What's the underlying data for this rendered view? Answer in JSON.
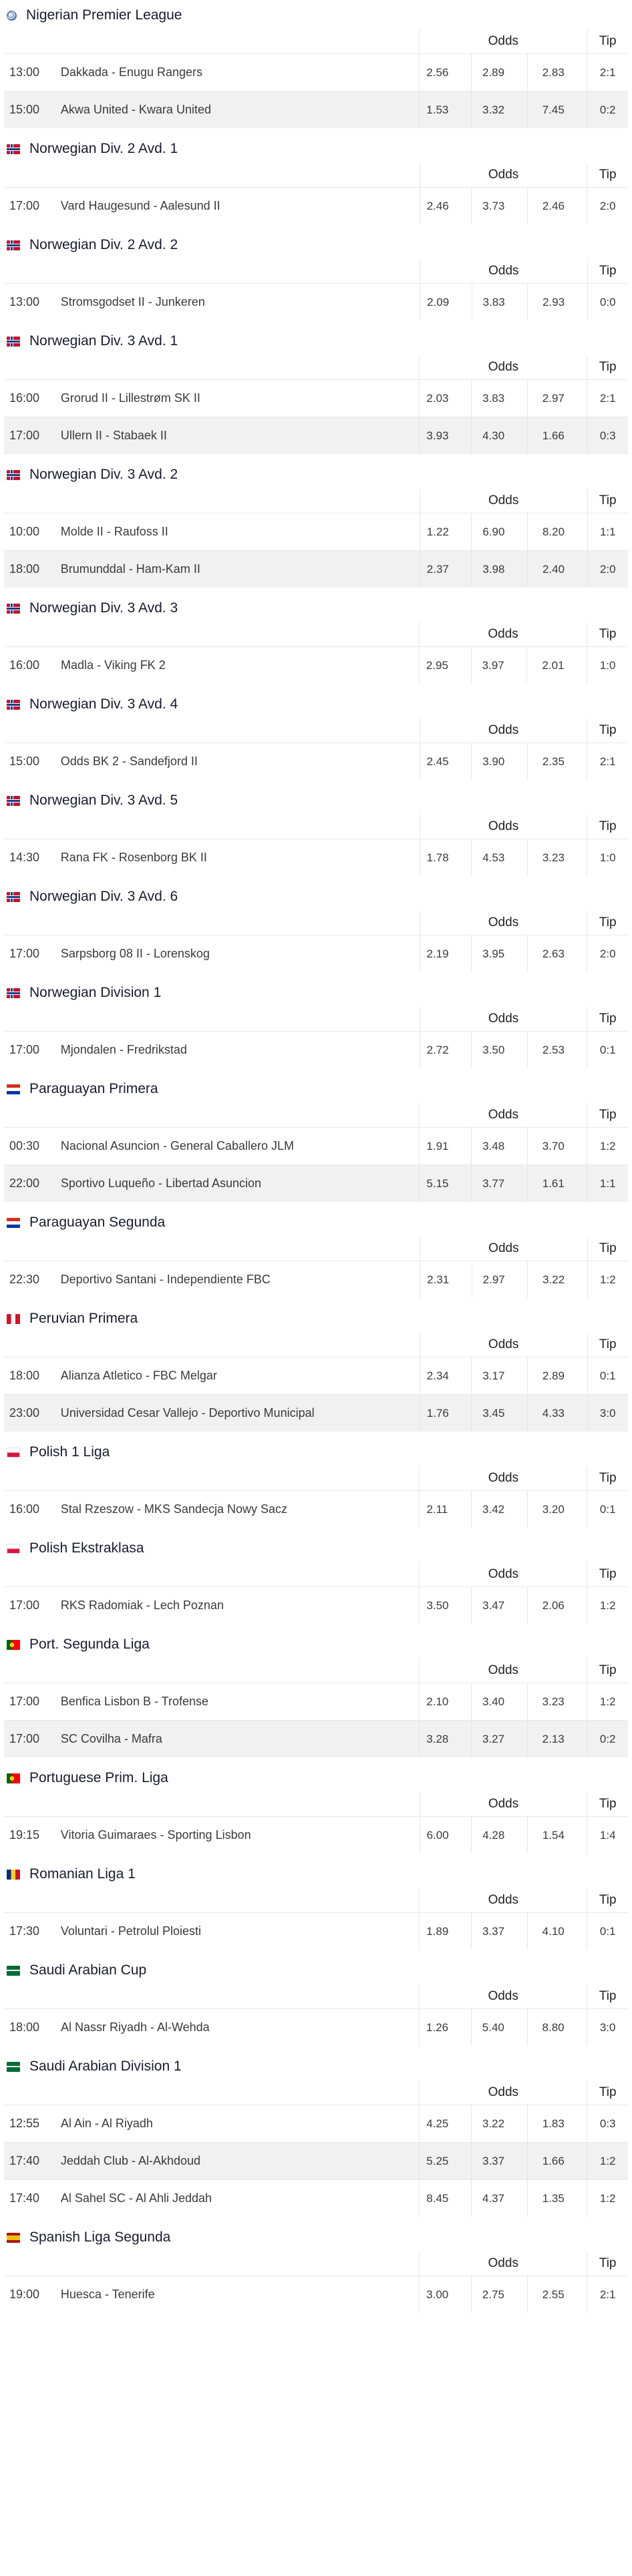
{
  "labels": {
    "odds": "Odds",
    "tip": "Tip"
  },
  "leagues": [
    {
      "name": "Nigerian Premier League",
      "flag": "globe-icon",
      "matches": [
        {
          "time": "13:00",
          "match": "Dakkada - Enugu Rangers",
          "o1": "2.56",
          "ox": "2.89",
          "o2": "2.83",
          "tip": "2:1"
        },
        {
          "time": "15:00",
          "match": "Akwa United - Kwara United",
          "o1": "1.53",
          "ox": "3.32",
          "o2": "7.45",
          "tip": "0:2"
        }
      ]
    },
    {
      "name": "Norwegian Div. 2 Avd. 1",
      "flag": "norway-flag-icon",
      "matches": [
        {
          "time": "17:00",
          "match": "Vard Haugesund - Aalesund II",
          "o1": "2.46",
          "ox": "3.73",
          "o2": "2.46",
          "tip": "2:0"
        }
      ]
    },
    {
      "name": "Norwegian Div. 2 Avd. 2",
      "flag": "norway-flag-icon",
      "matches": [
        {
          "time": "13:00",
          "match": "Stromsgodset II - Junkeren",
          "o1": "2.09",
          "ox": "3.83",
          "o2": "2.93",
          "tip": "0:0"
        }
      ]
    },
    {
      "name": "Norwegian Div. 3 Avd. 1",
      "flag": "norway-flag-icon",
      "matches": [
        {
          "time": "16:00",
          "match": "Grorud II - Lillestrøm SK II",
          "o1": "2.03",
          "ox": "3.83",
          "o2": "2.97",
          "tip": "2:1"
        },
        {
          "time": "17:00",
          "match": "Ullern II - Stabaek II",
          "o1": "3.93",
          "ox": "4.30",
          "o2": "1.66",
          "tip": "0:3"
        }
      ]
    },
    {
      "name": "Norwegian Div. 3 Avd. 2",
      "flag": "norway-flag-icon",
      "matches": [
        {
          "time": "10:00",
          "match": "Molde II - Raufoss II",
          "o1": "1.22",
          "ox": "6.90",
          "o2": "8.20",
          "tip": "1:1"
        },
        {
          "time": "18:00",
          "match": "Brumunddal - Ham-Kam II",
          "o1": "2.37",
          "ox": "3.98",
          "o2": "2.40",
          "tip": "2:0"
        }
      ]
    },
    {
      "name": "Norwegian Div. 3 Avd. 3",
      "flag": "norway-flag-icon",
      "matches": [
        {
          "time": "16:00",
          "match": "Madla - Viking FK 2",
          "o1": "2.95",
          "ox": "3.97",
          "o2": "2.01",
          "tip": "1:0"
        }
      ]
    },
    {
      "name": "Norwegian Div. 3 Avd. 4",
      "flag": "norway-flag-icon",
      "matches": [
        {
          "time": "15:00",
          "match": "Odds BK 2 - Sandefjord II",
          "o1": "2.45",
          "ox": "3.90",
          "o2": "2.35",
          "tip": "2:1"
        }
      ]
    },
    {
      "name": "Norwegian Div. 3 Avd. 5",
      "flag": "norway-flag-icon",
      "matches": [
        {
          "time": "14:30",
          "match": "Rana FK - Rosenborg BK II",
          "o1": "1.78",
          "ox": "4.53",
          "o2": "3.23",
          "tip": "1:0"
        }
      ]
    },
    {
      "name": "Norwegian Div. 3 Avd. 6",
      "flag": "norway-flag-icon",
      "matches": [
        {
          "time": "17:00",
          "match": "Sarpsborg 08 II - Lorenskog",
          "o1": "2.19",
          "ox": "3.95",
          "o2": "2.63",
          "tip": "2:0"
        }
      ]
    },
    {
      "name": "Norwegian Division 1",
      "flag": "norway-flag-icon",
      "matches": [
        {
          "time": "17:00",
          "match": "Mjondalen - Fredrikstad",
          "o1": "2.72",
          "ox": "3.50",
          "o2": "2.53",
          "tip": "0:1"
        }
      ]
    },
    {
      "name": "Paraguayan Primera",
      "flag": "paraguay-flag-icon",
      "matches": [
        {
          "time": "00:30",
          "match": "Nacional Asuncion - General Caballero JLM",
          "o1": "1.91",
          "ox": "3.48",
          "o2": "3.70",
          "tip": "1:2"
        },
        {
          "time": "22:00",
          "match": "Sportivo Luqueño - Libertad Asuncion",
          "o1": "5.15",
          "ox": "3.77",
          "o2": "1.61",
          "tip": "1:1"
        }
      ]
    },
    {
      "name": "Paraguayan Segunda",
      "flag": "paraguay-flag-icon",
      "matches": [
        {
          "time": "22:30",
          "match": "Deportivo Santani - Independiente FBC",
          "o1": "2.31",
          "ox": "2.97",
          "o2": "3.22",
          "tip": "1:2"
        }
      ]
    },
    {
      "name": "Peruvian Primera",
      "flag": "peru-flag-icon",
      "matches": [
        {
          "time": "18:00",
          "match": "Alianza Atletico - FBC Melgar",
          "o1": "2.34",
          "ox": "3.17",
          "o2": "2.89",
          "tip": "0:1"
        },
        {
          "time": "23:00",
          "match": "Universidad Cesar Vallejo - Deportivo Municipal",
          "o1": "1.76",
          "ox": "3.45",
          "o2": "4.33",
          "tip": "3:0"
        }
      ]
    },
    {
      "name": "Polish 1 Liga",
      "flag": "poland-flag-icon",
      "matches": [
        {
          "time": "16:00",
          "match": "Stal Rzeszow - MKS Sandecja Nowy Sacz",
          "o1": "2.11",
          "ox": "3.42",
          "o2": "3.20",
          "tip": "0:1"
        }
      ]
    },
    {
      "name": "Polish Ekstraklasa",
      "flag": "poland-flag-icon",
      "matches": [
        {
          "time": "17:00",
          "match": "RKS Radomiak - Lech Poznan",
          "o1": "3.50",
          "ox": "3.47",
          "o2": "2.06",
          "tip": "1:2"
        }
      ]
    },
    {
      "name": "Port. Segunda Liga",
      "flag": "portugal-flag-icon",
      "matches": [
        {
          "time": "17:00",
          "match": "Benfica Lisbon B - Trofense",
          "o1": "2.10",
          "ox": "3.40",
          "o2": "3.23",
          "tip": "1:2"
        },
        {
          "time": "17:00",
          "match": "SC Covilha - Mafra",
          "o1": "3.28",
          "ox": "3.27",
          "o2": "2.13",
          "tip": "0:2"
        }
      ]
    },
    {
      "name": "Portuguese Prim. Liga",
      "flag": "portugal-flag-icon",
      "matches": [
        {
          "time": "19:15",
          "match": "Vitoria Guimaraes - Sporting Lisbon",
          "o1": "6.00",
          "ox": "4.28",
          "o2": "1.54",
          "tip": "1:4"
        }
      ]
    },
    {
      "name": "Romanian Liga 1",
      "flag": "romania-flag-icon",
      "matches": [
        {
          "time": "17:30",
          "match": "Voluntari - Petrolul Ploiesti",
          "o1": "1.89",
          "ox": "3.37",
          "o2": "4.10",
          "tip": "0:1"
        }
      ]
    },
    {
      "name": "Saudi Arabian Cup",
      "flag": "saudi-flag-icon",
      "matches": [
        {
          "time": "18:00",
          "match": "Al Nassr Riyadh - Al-Wehda",
          "o1": "1.26",
          "ox": "5.40",
          "o2": "8.80",
          "tip": "3:0"
        }
      ]
    },
    {
      "name": "Saudi Arabian Division 1",
      "flag": "saudi-flag-icon",
      "matches": [
        {
          "time": "12:55",
          "match": "Al Ain - Al Riyadh",
          "o1": "4.25",
          "ox": "3.22",
          "o2": "1.83",
          "tip": "0:3"
        },
        {
          "time": "17:40",
          "match": "Jeddah Club - Al-Akhdoud",
          "o1": "5.25",
          "ox": "3.37",
          "o2": "1.66",
          "tip": "1:2"
        },
        {
          "time": "17:40",
          "match": "Al Sahel SC - Al Ahli Jeddah",
          "o1": "8.45",
          "ox": "4.37",
          "o2": "1.35",
          "tip": "1:2"
        }
      ]
    },
    {
      "name": "Spanish Liga Segunda",
      "flag": "spain-flag-icon",
      "matches": [
        {
          "time": "19:00",
          "match": "Huesca - Tenerife",
          "o1": "3.00",
          "ox": "2.75",
          "o2": "2.55",
          "tip": "2:1"
        }
      ]
    }
  ]
}
